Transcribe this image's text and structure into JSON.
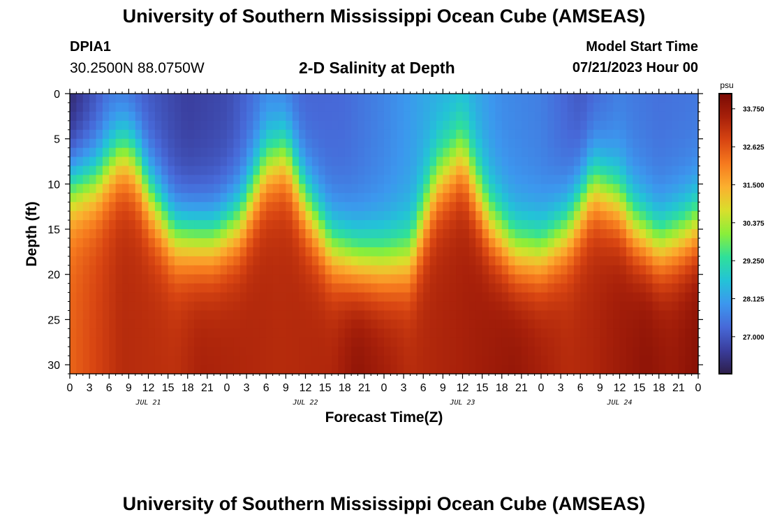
{
  "header": {
    "title": "University of Southern Mississippi Ocean Cube (AMSEAS)",
    "station_id": "DPIA1",
    "coordinates": "30.2500N  88.0750W",
    "subtitle": "2-D Salinity at Depth",
    "model_start_label": "Model Start Time",
    "model_start_value": "07/21/2023 Hour 00"
  },
  "footer": {
    "title": "University of Southern Mississippi Ocean Cube (AMSEAS)"
  },
  "chart_data": {
    "type": "heatmap",
    "title": "2-D Salinity at Depth",
    "xlabel": "Forecast Time(Z)",
    "ylabel": "Depth (ft)",
    "xlim": [
      0,
      96
    ],
    "ylim": [
      0,
      31
    ],
    "x_ticks": [
      0,
      3,
      6,
      9,
      12,
      15,
      18,
      21,
      24,
      27,
      30,
      33,
      36,
      39,
      42,
      45,
      48,
      51,
      54,
      57,
      60,
      63,
      66,
      69,
      72,
      75,
      78,
      81,
      84,
      87,
      90,
      93,
      96
    ],
    "x_tick_labels": [
      "0",
      "3",
      "6",
      "9",
      "12",
      "15",
      "18",
      "21",
      "0",
      "3",
      "6",
      "9",
      "12",
      "15",
      "18",
      "21",
      "0",
      "3",
      "6",
      "9",
      "12",
      "15",
      "18",
      "21",
      "0",
      "3",
      "6",
      "9",
      "12",
      "15",
      "18",
      "21",
      "0"
    ],
    "y_ticks": [
      0,
      5,
      10,
      15,
      20,
      25,
      30
    ],
    "y_tick_labels": [
      "0",
      "5",
      "10",
      "15",
      "20",
      "25",
      "30"
    ],
    "day_labels": [
      {
        "hour": 12,
        "label": "JUL 21"
      },
      {
        "hour": 36,
        "label": "JUL 22"
      },
      {
        "hour": 60,
        "label": "JUL 23"
      },
      {
        "hour": 84,
        "label": "JUL 24"
      }
    ],
    "colorbar": {
      "unit": "psu",
      "min": 25.9,
      "max": 34.2,
      "ticks": [
        33.75,
        32.625,
        31.5,
        30.375,
        29.25,
        28.125,
        27.0
      ],
      "tick_labels": [
        "33.750",
        "32.625",
        "31.500",
        "30.375",
        "29.250",
        "28.125",
        "27.000"
      ],
      "colors": [
        "#2d1e4a",
        "#3a3d9c",
        "#4769d8",
        "#3c97ee",
        "#23c3d7",
        "#2fe09a",
        "#8aee3a",
        "#d9df2c",
        "#fbb02f",
        "#f67a1e",
        "#d84512",
        "#a7200a",
        "#7a0a04"
      ]
    },
    "interface_profile": {
      "hours": [
        0,
        4,
        6,
        8,
        10,
        12,
        16,
        20,
        22,
        26,
        30,
        33,
        36,
        40,
        44,
        48,
        52,
        56,
        60,
        64,
        68,
        72,
        76,
        80,
        84,
        86,
        90,
        94,
        96
      ],
      "midline_depth_ft": [
        10,
        9.5,
        8,
        6.5,
        7.5,
        11,
        15.5,
        16,
        16,
        14,
        8,
        6.8,
        12,
        17,
        18.5,
        18.7,
        18.2,
        10,
        7,
        14,
        17.5,
        17.7,
        15,
        10,
        12,
        14.5,
        16.8,
        15.5,
        14.5
      ]
    },
    "surface_salinity_psu": {
      "hours": [
        0,
        6,
        12,
        18,
        24,
        30,
        36,
        42,
        48,
        54,
        60,
        66,
        72,
        78,
        84,
        90,
        96
      ],
      "values": [
        26.1,
        27.3,
        27.0,
        26.6,
        26.8,
        27.6,
        27.2,
        27.3,
        27.7,
        28.2,
        28.4,
        27.8,
        27.6,
        27.0,
        27.6,
        27.4,
        27.5
      ]
    },
    "bottom_salinity_psu": {
      "hours": [
        0,
        8,
        16,
        20,
        32,
        40,
        44,
        52,
        60,
        68,
        76,
        80,
        88,
        92,
        96
      ],
      "values": [
        32.4,
        33.3,
        33.2,
        33.5,
        33.3,
        33.4,
        33.9,
        33.3,
        33.5,
        33.8,
        33.3,
        33.4,
        33.9,
        33.7,
        34.0
      ]
    }
  }
}
